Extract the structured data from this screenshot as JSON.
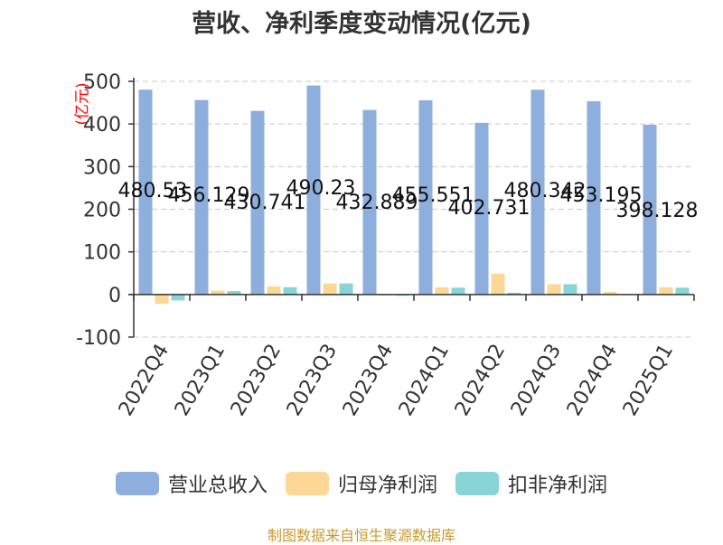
{
  "chart_data": {
    "type": "bar",
    "title": "营收、净利季度变动情况(亿元)",
    "unit_label": "(亿元)",
    "categories": [
      "2022Q4",
      "2023Q1",
      "2023Q2",
      "2023Q3",
      "2023Q4",
      "2024Q1",
      "2024Q2",
      "2024Q3",
      "2024Q4",
      "2025Q1"
    ],
    "series": [
      {
        "name": "营业总收入",
        "color": "#8eaedd",
        "values": [
          480.53,
          456.129,
          430.741,
          490.23,
          432.889,
          455.551,
          402.731,
          480.342,
          453.195,
          398.128
        ]
      },
      {
        "name": "归母净利润",
        "color": "#fdd796",
        "values": [
          -22,
          9,
          19,
          26,
          -2,
          17,
          49,
          24,
          6,
          17
        ]
      },
      {
        "name": "扣非净利润",
        "color": "#88d4d6",
        "values": [
          -14,
          8,
          17,
          26,
          -3,
          16,
          4,
          24,
          1,
          16
        ]
      }
    ],
    "data_labels": [
      "480.53",
      "456.129",
      "430.741",
      "490.23",
      "432.889",
      "455.551",
      "402.731",
      "480.342",
      "453.195",
      "398.128"
    ],
    "y_ticks": [
      -100,
      0,
      100,
      200,
      300,
      400,
      500
    ],
    "ylim": [
      -100,
      500
    ],
    "grid": true,
    "legend_position": "bottom"
  },
  "footer": {
    "source": "制图数据来自恒生聚源数据库"
  }
}
